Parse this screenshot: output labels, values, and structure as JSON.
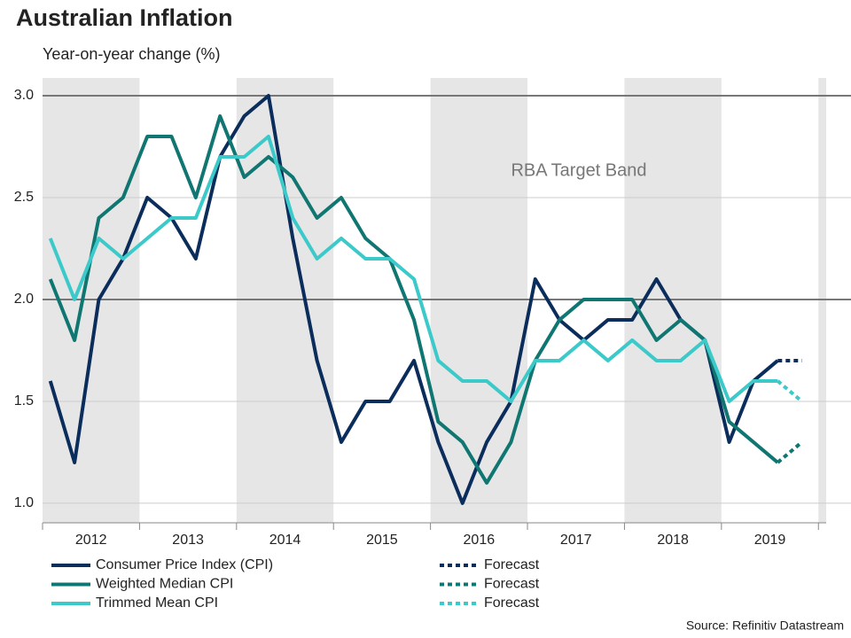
{
  "chart_data": {
    "type": "line",
    "title": "Australian Inflation",
    "subtitle": "Year-on-year change (%)",
    "source": "Source: Refinitiv Datastream",
    "annotation": "RBA Target Band",
    "target_band": [
      2.0,
      3.0
    ],
    "x": [
      2012.08,
      2012.33,
      2012.58,
      2012.83,
      2013.08,
      2013.33,
      2013.58,
      2013.83,
      2014.08,
      2014.33,
      2014.58,
      2014.83,
      2015.08,
      2015.33,
      2015.58,
      2015.83,
      2016.08,
      2016.33,
      2016.58,
      2016.83,
      2017.08,
      2017.33,
      2017.58,
      2017.83,
      2018.08,
      2018.33,
      2018.58,
      2018.83,
      2019.08,
      2019.33,
      2019.58,
      2019.83
    ],
    "series": [
      {
        "name": "Consumer Price Index (CPI)",
        "color": "#0b2d5b",
        "dashed": false,
        "values": [
          1.6,
          1.2,
          2.0,
          2.2,
          2.5,
          2.4,
          2.2,
          2.7,
          2.9,
          3.0,
          2.3,
          1.7,
          1.3,
          1.5,
          1.5,
          1.7,
          1.3,
          1.0,
          1.3,
          1.5,
          2.1,
          1.9,
          1.8,
          1.9,
          1.9,
          2.1,
          1.9,
          1.8,
          1.3,
          1.6,
          1.7,
          null
        ]
      },
      {
        "name": "Weighted Median CPI",
        "color": "#0f7671",
        "dashed": false,
        "values": [
          2.1,
          1.8,
          2.4,
          2.5,
          2.8,
          2.8,
          2.5,
          2.9,
          2.6,
          2.7,
          2.6,
          2.4,
          2.5,
          2.3,
          2.2,
          1.9,
          1.4,
          1.3,
          1.1,
          1.3,
          1.7,
          1.9,
          2.0,
          2.0,
          2.0,
          1.8,
          1.9,
          1.8,
          1.4,
          1.3,
          1.2,
          null
        ]
      },
      {
        "name": "Trimmed Mean CPI",
        "color": "#3cc9c9",
        "dashed": false,
        "values": [
          2.3,
          2.0,
          2.3,
          2.2,
          2.3,
          2.4,
          2.4,
          2.7,
          2.7,
          2.8,
          2.4,
          2.2,
          2.3,
          2.2,
          2.2,
          2.1,
          1.7,
          1.6,
          1.6,
          1.5,
          1.7,
          1.7,
          1.8,
          1.7,
          1.8,
          1.7,
          1.7,
          1.8,
          1.5,
          1.6,
          1.6,
          null
        ]
      },
      {
        "name": "Forecast",
        "color": "#0b2d5b",
        "dashed": true,
        "values": [
          null,
          null,
          null,
          null,
          null,
          null,
          null,
          null,
          null,
          null,
          null,
          null,
          null,
          null,
          null,
          null,
          null,
          null,
          null,
          null,
          null,
          null,
          null,
          null,
          null,
          null,
          null,
          null,
          null,
          null,
          1.7,
          1.7
        ]
      },
      {
        "name": "Forecast",
        "color": "#0f7671",
        "dashed": true,
        "values": [
          null,
          null,
          null,
          null,
          null,
          null,
          null,
          null,
          null,
          null,
          null,
          null,
          null,
          null,
          null,
          null,
          null,
          null,
          null,
          null,
          null,
          null,
          null,
          null,
          null,
          null,
          null,
          null,
          null,
          null,
          1.2,
          1.3
        ]
      },
      {
        "name": "Forecast",
        "color": "#3cc9c9",
        "dashed": true,
        "values": [
          null,
          null,
          null,
          null,
          null,
          null,
          null,
          null,
          null,
          null,
          null,
          null,
          null,
          null,
          null,
          null,
          null,
          null,
          null,
          null,
          null,
          null,
          null,
          null,
          null,
          null,
          null,
          null,
          null,
          null,
          1.6,
          1.5
        ]
      }
    ],
    "xlim": [
      2012,
      2020.08
    ],
    "xticks": [
      2012,
      2013,
      2014,
      2015,
      2016,
      2017,
      2018,
      2019
    ],
    "ylim": [
      0.904,
      3.087
    ],
    "yticks": [
      {
        "value": 1.0,
        "label": "1.0"
      },
      {
        "value": 1.5,
        "label": "1.5"
      },
      {
        "value": 2.0,
        "label": "2.0"
      },
      {
        "value": 2.5,
        "label": "2.5"
      },
      {
        "value": 3.0,
        "label": "3.0"
      }
    ],
    "grid": true,
    "shaded_years": true
  }
}
